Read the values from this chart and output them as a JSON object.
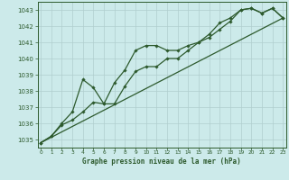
{
  "xlabel": "Graphe pression niveau de la mer (hPa)",
  "x_ticks": [
    0,
    1,
    2,
    3,
    4,
    5,
    6,
    7,
    8,
    9,
    10,
    11,
    12,
    13,
    14,
    15,
    16,
    17,
    18,
    19,
    20,
    21,
    22,
    23
  ],
  "ylim": [
    1034.5,
    1043.5
  ],
  "yticks": [
    1035,
    1036,
    1037,
    1038,
    1039,
    1040,
    1041,
    1042,
    1043
  ],
  "xlim": [
    -0.3,
    23.3
  ],
  "bg_color": "#cceaea",
  "grid_color": "#b0cece",
  "line_color": "#2d5a2d",
  "line1_x": [
    0,
    1,
    2,
    3,
    4,
    5,
    6,
    7,
    8,
    9,
    10,
    11,
    12,
    13,
    14,
    15,
    16,
    17,
    18,
    19,
    20,
    21,
    22,
    23
  ],
  "line1_y": [
    1034.8,
    1035.2,
    1035.9,
    1036.2,
    1036.7,
    1037.3,
    1037.2,
    1038.5,
    1039.3,
    1040.5,
    1040.8,
    1040.8,
    1040.5,
    1040.5,
    1040.8,
    1041.0,
    1041.3,
    1041.8,
    1042.3,
    1043.0,
    1043.1,
    1042.8,
    1043.1,
    1042.5
  ],
  "line2_x": [
    0,
    1,
    2,
    3,
    4,
    5,
    6,
    7,
    8,
    9,
    10,
    11,
    12,
    13,
    14,
    15,
    16,
    17,
    18,
    19,
    20,
    21,
    22,
    23
  ],
  "line2_y": [
    1034.8,
    1035.2,
    1036.0,
    1036.7,
    1038.7,
    1038.2,
    1037.2,
    1037.2,
    1038.3,
    1039.2,
    1039.5,
    1039.5,
    1040.0,
    1040.0,
    1040.5,
    1041.0,
    1041.5,
    1042.2,
    1042.5,
    1043.0,
    1043.1,
    1042.8,
    1043.1,
    1042.5
  ],
  "line3_x": [
    0,
    23
  ],
  "line3_y": [
    1034.8,
    1042.5
  ]
}
